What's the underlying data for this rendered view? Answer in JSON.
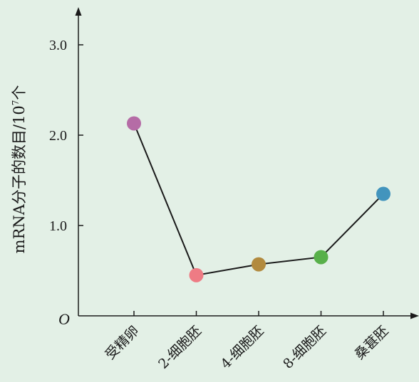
{
  "chart_data": {
    "type": "line",
    "categories": [
      "受精卵",
      "2-细胞胚",
      "4-细胞胚",
      "8-细胞胚",
      "桑葚胚"
    ],
    "values": [
      2.13,
      0.45,
      0.57,
      0.65,
      1.35
    ],
    "point_colors": [
      "#b56ca6",
      "#ee7b84",
      "#b28a3e",
      "#58b04a",
      "#4294bd"
    ],
    "ylabel_main": "mRNA分子的数目/10",
    "ylabel_exp": "7",
    "ylabel_unit": "个",
    "origin_label": "O",
    "yticks": [
      {
        "value": 1.0,
        "label": "1.0"
      },
      {
        "value": 2.0,
        "label": "2.0"
      },
      {
        "value": 3.0,
        "label": "3.0"
      }
    ],
    "ylim": [
      0,
      3.4
    ],
    "grid": false,
    "line_color": "#1a1a1a",
    "background": "#e3f0e6"
  }
}
